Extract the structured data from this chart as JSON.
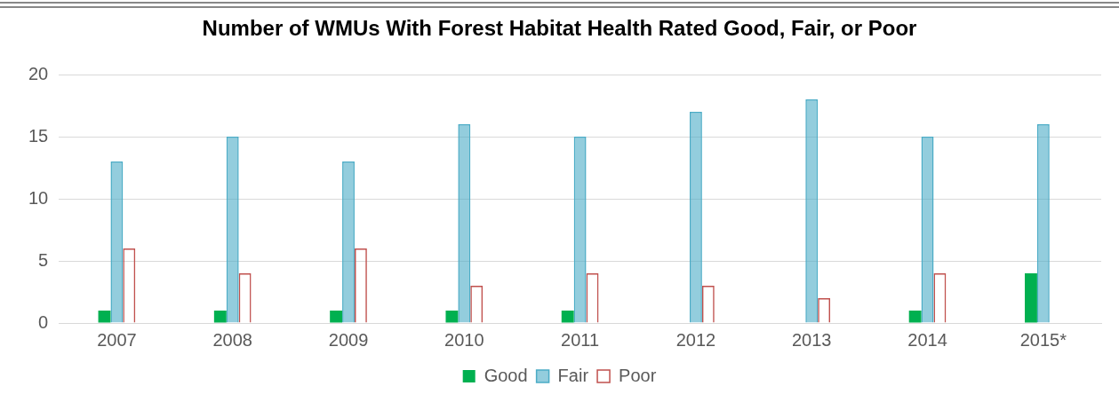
{
  "chart_data": {
    "type": "bar",
    "title": "Number of WMUs With Forest Habitat Health Rated Good, Fair, or Poor",
    "categories": [
      "2007",
      "2008",
      "2009",
      "2010",
      "2011",
      "2012",
      "2013",
      "2014",
      "2015*"
    ],
    "series": [
      {
        "name": "Good",
        "color": "#00b050",
        "values": [
          1,
          1,
          1,
          1,
          1,
          0,
          0,
          1,
          4
        ]
      },
      {
        "name": "Fair",
        "color": "#4bacc6",
        "values": [
          13,
          15,
          13,
          16,
          15,
          17,
          18,
          15,
          16
        ]
      },
      {
        "name": "Poor",
        "color": "#c0504d",
        "values": [
          6,
          4,
          6,
          3,
          4,
          3,
          2,
          4,
          0
        ]
      }
    ],
    "ylim": [
      0,
      20
    ],
    "yticks": [
      0,
      5,
      10,
      15,
      20
    ],
    "grid": "y",
    "legend": "bottom"
  }
}
